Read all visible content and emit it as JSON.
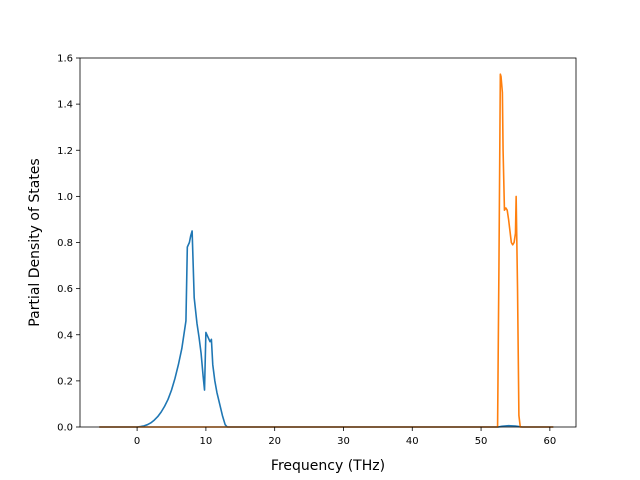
{
  "chart_data": {
    "type": "line",
    "title": "",
    "xlabel": "Frequency (THz)",
    "ylabel": "Partial Density of States",
    "xlim": [
      -8.3,
      63.8
    ],
    "ylim": [
      0.0,
      1.6
    ],
    "xticks": [
      0,
      10,
      20,
      30,
      40,
      50,
      60
    ],
    "yticks": [
      0.0,
      0.2,
      0.4,
      0.6,
      0.8,
      1.0,
      1.2,
      1.4,
      1.6
    ],
    "xtick_labels": [
      "0",
      "10",
      "20",
      "30",
      "40",
      "50",
      "60"
    ],
    "ytick_labels": [
      "0.0",
      "0.2",
      "0.4",
      "0.6",
      "0.8",
      "1.0",
      "1.2",
      "1.4",
      "1.6"
    ],
    "grid": false,
    "legend": false,
    "series": [
      {
        "color": "#1f77b4",
        "x": [
          -5.5,
          0.0,
          0.5,
          1.0,
          1.5,
          2.0,
          2.5,
          3.0,
          3.5,
          4.0,
          4.5,
          5.0,
          5.5,
          6.0,
          6.5,
          6.8,
          7.1,
          7.3,
          7.6,
          7.8,
          8.0,
          8.3,
          8.7,
          9.0,
          9.3,
          9.6,
          9.8,
          10.0,
          10.3,
          10.6,
          10.8,
          11.0,
          11.3,
          11.6,
          12.0,
          12.4,
          12.8,
          13.1,
          20.0,
          40.0,
          52.5,
          53.0,
          54.0,
          55.0,
          56.0,
          60.5
        ],
        "y": [
          0.0,
          0.0,
          0.002,
          0.005,
          0.01,
          0.018,
          0.03,
          0.045,
          0.065,
          0.09,
          0.12,
          0.16,
          0.21,
          0.27,
          0.34,
          0.4,
          0.46,
          0.78,
          0.8,
          0.83,
          0.85,
          0.56,
          0.45,
          0.39,
          0.32,
          0.22,
          0.16,
          0.41,
          0.39,
          0.37,
          0.38,
          0.27,
          0.2,
          0.15,
          0.1,
          0.05,
          0.01,
          0.0,
          0.0,
          0.0,
          0.0,
          0.003,
          0.006,
          0.004,
          0.0,
          0.0
        ]
      },
      {
        "color": "#ff7f0e",
        "x": [
          -5.5,
          10.0,
          30.0,
          50.0,
          52.4,
          52.6,
          52.8,
          52.9,
          53.1,
          53.2,
          53.4,
          53.6,
          53.8,
          54.0,
          54.2,
          54.4,
          54.6,
          54.8,
          55.0,
          55.1,
          55.3,
          55.5,
          55.7,
          58.0,
          60.5
        ],
        "y": [
          0.0,
          0.0,
          0.0,
          0.0,
          0.0,
          0.7,
          1.53,
          1.52,
          1.45,
          1.2,
          0.94,
          0.95,
          0.94,
          0.9,
          0.85,
          0.8,
          0.79,
          0.8,
          0.84,
          1.0,
          0.6,
          0.05,
          0.0,
          0.0,
          0.0
        ]
      }
    ]
  }
}
